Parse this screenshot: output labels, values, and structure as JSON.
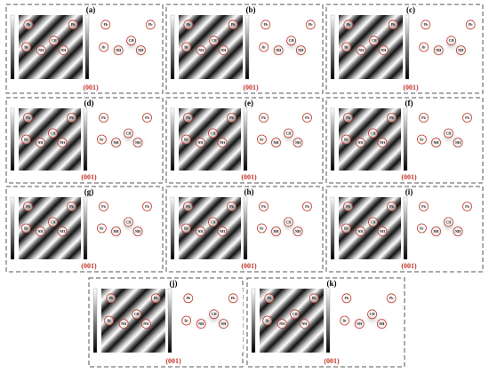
{
  "panels": [
    {
      "label": "(a)",
      "plane": "(001)"
    },
    {
      "label": "(b)",
      "plane": "(001)"
    },
    {
      "label": "(c)",
      "plane": "(001)"
    },
    {
      "label": "(d)",
      "plane": "(001)"
    },
    {
      "label": "(e)",
      "plane": "(001)"
    },
    {
      "label": "(f)",
      "plane": "(001)"
    },
    {
      "label": "(g)",
      "plane": "(001)"
    },
    {
      "label": "(h)",
      "plane": "(001)"
    },
    {
      "label": "(i)",
      "plane": "(001)"
    },
    {
      "label": "(j)",
      "plane": "(001)"
    },
    {
      "label": "(k)",
      "plane": "(001)"
    }
  ],
  "atom_labels": [
    "Pb",
    "Pb",
    "Br",
    "CH",
    "NH",
    "NH"
  ]
}
